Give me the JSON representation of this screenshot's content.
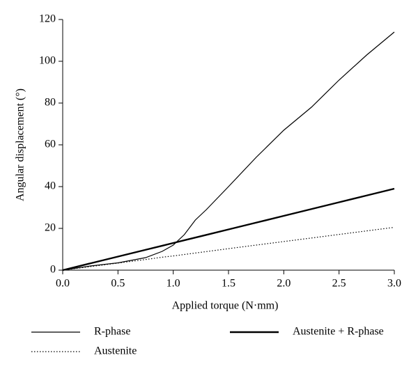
{
  "chart_data": {
    "type": "line",
    "x_label": "Applied torque (N·mm)",
    "y_label": "Angular displacement (°)",
    "x": [
      0,
      0.25,
      0.5,
      0.75,
      0.9,
      1.0,
      1.1,
      1.2,
      1.3,
      1.5,
      1.75,
      2.0,
      2.25,
      2.5,
      2.75,
      3.0
    ],
    "series": [
      {
        "name": "R-phase",
        "color": "#000000",
        "linewidth": 1.2,
        "dash": "solid",
        "values": [
          0,
          2,
          3.5,
          6,
          9,
          12,
          17,
          24,
          29,
          40,
          54,
          67,
          78,
          91,
          103,
          114
        ]
      },
      {
        "name": "Austenite",
        "color": "#000000",
        "linewidth": 1.2,
        "dash": "dotted",
        "values": [
          0,
          1.7,
          3.4,
          5.1,
          6.2,
          6.8,
          7.5,
          8.2,
          8.9,
          10.3,
          12,
          13.7,
          15.4,
          17.1,
          18.8,
          20.5
        ]
      },
      {
        "name": "Austenite + R-phase",
        "color": "#000000",
        "linewidth": 2.4,
        "dash": "solid",
        "values": [
          0,
          3.25,
          6.5,
          9.75,
          11.7,
          13,
          14.3,
          15.6,
          16.9,
          19.5,
          22.75,
          26,
          29.25,
          32.5,
          35.75,
          39
        ]
      }
    ],
    "xlim": [
      0,
      3
    ],
    "xticks": [
      {
        "value": 0,
        "label": "0.0"
      },
      0.5,
      {
        "value": 1,
        "label": "1.0"
      },
      1.5,
      {
        "value": 2,
        "label": "2.0"
      },
      2.5,
      {
        "value": 3,
        "label": "3.0"
      }
    ],
    "ylim": [
      0,
      120
    ],
    "yticks": [
      0,
      20,
      40,
      60,
      80,
      100,
      120
    ],
    "grid": false,
    "legend": "bottom"
  }
}
